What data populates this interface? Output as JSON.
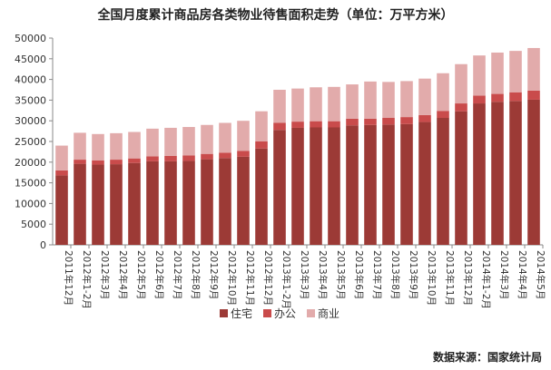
{
  "chart_data": {
    "type": "bar",
    "stacked": true,
    "title": "全国月度累计商品房各类物业待售面积走势（单位：万平方米）",
    "source": "数据来源：国家统计局",
    "categories": [
      "2011年12月",
      "2012年1-2月",
      "2012年3月",
      "2012年4月",
      "2012年5月",
      "2012年6月",
      "2012年7月",
      "2012年8月",
      "2012年9月",
      "2012年10月",
      "2012年11月",
      "2012年12月",
      "2013年1-2月",
      "2013年3月",
      "2013年4月",
      "2013年5月",
      "2013年6月",
      "2013年7月",
      "2013年8月",
      "2013年9月",
      "2013年10月",
      "2013年11月",
      "2013年12月",
      "2014年1-2月",
      "2014年3月",
      "2014年4月",
      "2014年5月"
    ],
    "series": [
      {
        "name": "住宅",
        "color": "#9c3a36",
        "values": [
          16800,
          19600,
          19400,
          19500,
          19800,
          20200,
          20200,
          20300,
          20700,
          21000,
          21300,
          23300,
          27800,
          28300,
          28400,
          28400,
          28900,
          29000,
          29100,
          29200,
          29700,
          30700,
          32300,
          34200,
          34600,
          34800,
          35100
        ]
      },
      {
        "name": "办公",
        "color": "#c94b4b",
        "values": [
          1200,
          1000,
          1000,
          1100,
          1100,
          1200,
          1300,
          1300,
          1300,
          1300,
          1400,
          1700,
          1700,
          1500,
          1500,
          1500,
          1600,
          1500,
          1600,
          1700,
          1700,
          1700,
          1900,
          1900,
          1900,
          2100,
          2200
        ]
      },
      {
        "name": "商业",
        "color": "#e2abab",
        "values": [
          6000,
          6500,
          6400,
          6400,
          6400,
          6700,
          6800,
          6900,
          7000,
          7200,
          7300,
          7300,
          8000,
          8000,
          8200,
          8300,
          8300,
          9000,
          8700,
          8700,
          8800,
          9100,
          9500,
          9700,
          10000,
          10000,
          10300
        ]
      }
    ],
    "ylim": [
      0,
      50000
    ],
    "yticks": [
      "0",
      "5000",
      "10000",
      "15000",
      "20000",
      "25000",
      "30000",
      "35000",
      "40000",
      "45000",
      "50000"
    ],
    "legend_position": "bottom-center",
    "grid": false
  }
}
